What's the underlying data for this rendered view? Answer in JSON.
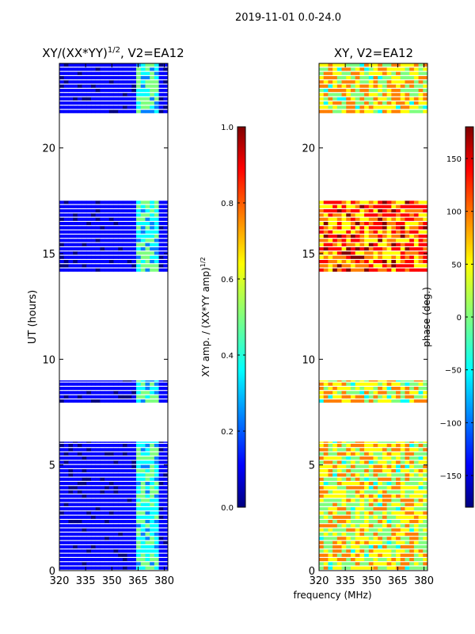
{
  "figure": {
    "suptitle": "2019-11-01 0.0-24.0",
    "shared_xlabel": "frequency (MHz)"
  },
  "colors": {
    "jet": [
      "#00007f",
      "#0000ff",
      "#007fff",
      "#00ffff",
      "#7fff7f",
      "#ffff00",
      "#ff7f00",
      "#ff0000",
      "#7f0000"
    ]
  },
  "chart_data": [
    {
      "type": "heatmap",
      "title_main": "XY/(XX*YY)",
      "title_exp": "1/2",
      "title_rest": ", V2=EA12",
      "ylabel": "UT (hours)",
      "xlim": [
        320,
        382
      ],
      "ylim": [
        0,
        24
      ],
      "xticks": [
        320,
        335,
        350,
        365,
        380
      ],
      "yticks": [
        0,
        5,
        10,
        15,
        20
      ],
      "colorbar": {
        "label_main": "XY amp. / (XX*YY amp)",
        "label_exp": "1/2",
        "vmin": 0.0,
        "vmax": 1.0,
        "ticks": [
          "0.0",
          "0.2",
          "0.4",
          "0.6",
          "0.8",
          "1.0"
        ],
        "tick_values": [
          0.0,
          0.2,
          0.4,
          0.6,
          0.8,
          1.0
        ]
      },
      "data_blocks_ut_hours": [
        [
          0,
          6.1
        ],
        [
          7.9,
          9.0
        ],
        [
          14.1,
          17.5
        ],
        [
          21.6,
          24.0
        ]
      ],
      "typical_values": {
        "out_of_band": 0.1,
        "band_363_to_376_MHz": 0.4
      }
    },
    {
      "type": "heatmap",
      "title_main": "XY, V2=EA12",
      "ylabel": "",
      "xlim": [
        320,
        382
      ],
      "ylim": [
        0,
        24
      ],
      "xticks": [
        320,
        335,
        350,
        365,
        380
      ],
      "yticks": [
        0,
        5,
        10,
        15,
        20
      ],
      "colorbar": {
        "label_main": "phase (deg.)",
        "vmin": -180,
        "vmax": 180,
        "ticks": [
          "−150",
          "−100",
          "−50",
          "0",
          "50",
          "100",
          "150"
        ],
        "tick_values": [
          -150,
          -100,
          -50,
          0,
          50,
          100,
          150
        ]
      },
      "data_blocks_ut_hours": [
        [
          0,
          6.1
        ],
        [
          7.9,
          9.0
        ],
        [
          14.1,
          17.5
        ],
        [
          21.6,
          24.0
        ]
      ],
      "typical_values": {
        "14.1_to_17.5_h": 100,
        "other_blocks": 40
      }
    }
  ]
}
